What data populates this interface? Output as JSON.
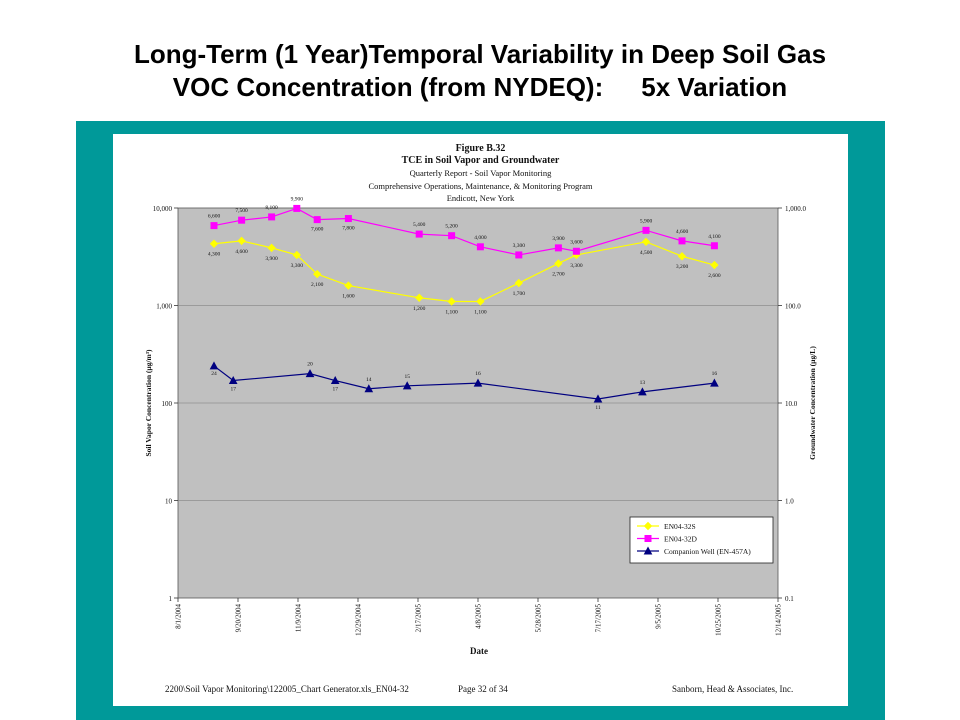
{
  "slide": {
    "title_line1": "Long-Term (1 Year)Temporal Variability in Deep Soil Gas",
    "title_line2a": "VOC Concentration (from NYDEQ):",
    "title_line2b": "5x Variation",
    "frame_color": "#009999"
  },
  "figure": {
    "number": "Figure B.32",
    "heading": "TCE in Soil Vapor and Groundwater",
    "subtitle1": "Quarterly  Report - Soil Vapor Monitoring",
    "subtitle2": "Comprehensive Operations, Maintenance, & Monitoring Program",
    "location": "Endicott, New York"
  },
  "footer": {
    "path": "2200\\Soil Vapor Monitoring\\122005_Chart Generator.xls_EN04-32",
    "page": "Page 32 of 34",
    "company": "Sanborn, Head & Associates, Inc."
  },
  "chart_data": {
    "type": "line",
    "xlabel": "Date",
    "ylabel": "Soil Vapor Concentration (µg/m³)",
    "y2label": "Groundwater Concentration (µg/L)",
    "y_scale": "log",
    "ylim": [
      1,
      10000
    ],
    "y_ticks": [
      "1",
      "10",
      "100",
      "1,000",
      "10,000"
    ],
    "y2lim": [
      0.1,
      1000
    ],
    "y2_ticks": [
      "0.1",
      "1.0",
      "10.0",
      "100.0",
      "1,000.0"
    ],
    "xlim": [
      "2004-08-01",
      "2005-12-14"
    ],
    "x_ticks": [
      "8/1/2004",
      "9/20/2004",
      "11/9/2004",
      "12/29/2004",
      "2/17/2005",
      "4/8/2005",
      "5/28/2005",
      "7/17/2005",
      "9/5/2005",
      "10/25/2005",
      "12/14/2005"
    ],
    "plot_background": "#c0c0c0",
    "legend_position": "bottom-right",
    "series": [
      {
        "name": "EN04-32S",
        "color": "#ffff00",
        "marker": "diamond",
        "axis": "left",
        "points": [
          {
            "x": "2004-08-31",
            "y": 4300,
            "label": "4,300"
          },
          {
            "x": "2004-09-23",
            "y": 4600,
            "label": "4,600"
          },
          {
            "x": "2004-10-18",
            "y": 3900,
            "label": "3,900"
          },
          {
            "x": "2004-11-08",
            "y": 3300,
            "label": "3,300"
          },
          {
            "x": "2004-11-25",
            "y": 2100,
            "label": "2,100"
          },
          {
            "x": "2004-12-21",
            "y": 1600,
            "label": "1,600"
          },
          {
            "x": "2005-02-18",
            "y": 1200,
            "label": "1,200"
          },
          {
            "x": "2005-03-17",
            "y": 1100,
            "label": "1,100"
          },
          {
            "x": "2005-04-10",
            "y": 1100,
            "label": "1,100"
          },
          {
            "x": "2005-05-12",
            "y": 1700,
            "label": "1,700"
          },
          {
            "x": "2005-06-14",
            "y": 2700,
            "label": "2,700"
          },
          {
            "x": "2005-06-29",
            "y": 3300,
            "label": "3,300"
          },
          {
            "x": "2005-08-26",
            "y": 4500,
            "label": "4,500"
          },
          {
            "x": "2005-09-25",
            "y": 3200,
            "label": "3,200"
          },
          {
            "x": "2005-10-22",
            "y": 2600,
            "label": "2,600"
          }
        ]
      },
      {
        "name": "EN04-32D",
        "color": "#ff00ff",
        "marker": "square",
        "axis": "left",
        "points": [
          {
            "x": "2004-08-31",
            "y": 6600,
            "label": "6,600"
          },
          {
            "x": "2004-09-23",
            "y": 7500,
            "label": "7,500"
          },
          {
            "x": "2004-10-18",
            "y": 8100,
            "label": "8,100"
          },
          {
            "x": "2004-11-08",
            "y": 9900,
            "label": "9,900"
          },
          {
            "x": "2004-11-25",
            "y": 7600,
            "label": "7,600"
          },
          {
            "x": "2004-12-21",
            "y": 7800,
            "label": "7,800"
          },
          {
            "x": "2005-02-18",
            "y": 5400,
            "label": "5,400"
          },
          {
            "x": "2005-03-17",
            "y": 5200,
            "label": "5,200"
          },
          {
            "x": "2005-04-10",
            "y": 4000,
            "label": "4,000"
          },
          {
            "x": "2005-05-12",
            "y": 3300,
            "label": "3,300"
          },
          {
            "x": "2005-06-14",
            "y": 3900,
            "label": "3,900"
          },
          {
            "x": "2005-06-29",
            "y": 3600,
            "label": "3,600"
          },
          {
            "x": "2005-08-26",
            "y": 5900,
            "label": "5,900"
          },
          {
            "x": "2005-09-25",
            "y": 4600,
            "label": "4,600"
          },
          {
            "x": "2005-10-22",
            "y": 4100,
            "label": "4,100"
          }
        ]
      },
      {
        "name": "Companion Well (EN-457A)",
        "color": "#000080",
        "marker": "triangle",
        "axis": "right",
        "points": [
          {
            "x": "2004-08-31",
            "y": 24,
            "label": "24"
          },
          {
            "x": "2004-09-16",
            "y": 17,
            "label": "17"
          },
          {
            "x": "2004-11-19",
            "y": 20,
            "label": "20"
          },
          {
            "x": "2004-12-10",
            "y": 17,
            "label": "17"
          },
          {
            "x": "2005-01-07",
            "y": 14,
            "label": "14"
          },
          {
            "x": "2005-02-08",
            "y": 15,
            "label": "15"
          },
          {
            "x": "2005-04-08",
            "y": 16,
            "label": "16"
          },
          {
            "x": "2005-07-17",
            "y": 11,
            "label": "11"
          },
          {
            "x": "2005-08-23",
            "y": 13,
            "label": "13"
          },
          {
            "x": "2005-10-22",
            "y": 16,
            "label": "16"
          }
        ]
      }
    ]
  }
}
